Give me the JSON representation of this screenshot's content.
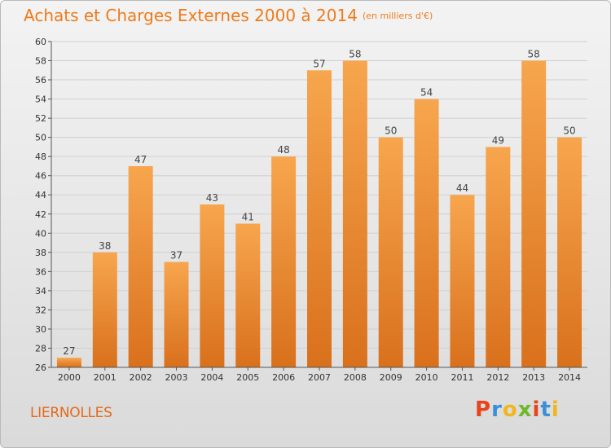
{
  "title": "Achats et Charges Externes 2000 à 2014",
  "subtitle": "(en milliers d'€)",
  "commune": "LIERNOLLES",
  "logo": "Proxiti",
  "colors": {
    "bar_light": "#f7a64e",
    "bar_dark": "#d9701c",
    "title": "#f07a1a",
    "axis": "#555555",
    "grid": "#d0d0d0"
  },
  "chart_data": {
    "type": "bar",
    "title": "Achats et Charges Externes 2000 à 2014",
    "subtitle": "(en milliers d'€)",
    "categories": [
      "2000",
      "2001",
      "2002",
      "2003",
      "2004",
      "2005",
      "2006",
      "2007",
      "2008",
      "2009",
      "2010",
      "2011",
      "2012",
      "2013",
      "2014"
    ],
    "values": [
      27,
      38,
      47,
      37,
      43,
      41,
      48,
      57,
      58,
      50,
      54,
      44,
      49,
      58,
      50
    ],
    "ylim": [
      26,
      60
    ],
    "yticks": [
      26,
      28,
      30,
      32,
      34,
      36,
      38,
      40,
      42,
      44,
      46,
      48,
      50,
      52,
      54,
      56,
      58,
      60
    ],
    "grid": "horizontal",
    "data_labels": true
  }
}
